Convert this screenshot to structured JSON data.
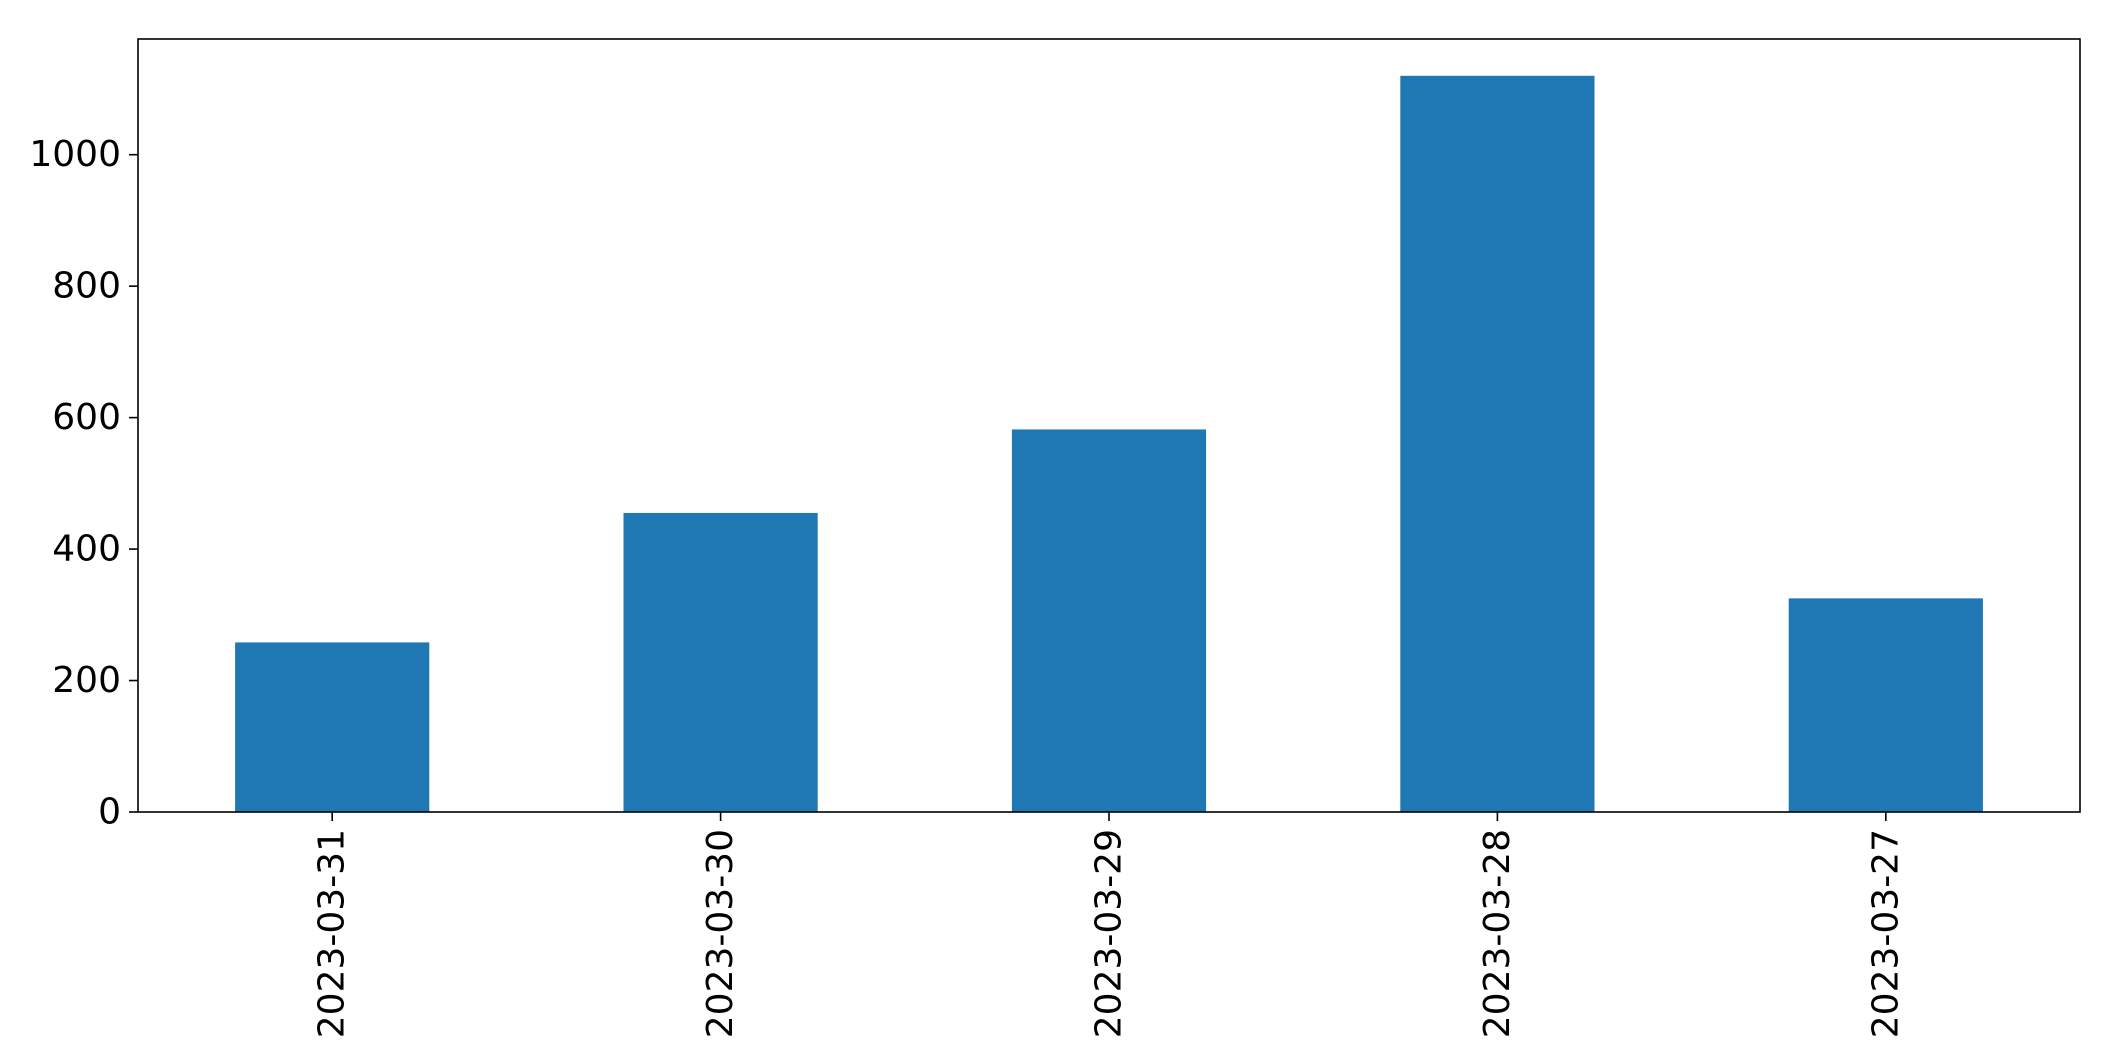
{
  "chart_data": {
    "type": "bar",
    "title": "",
    "xlabel": "",
    "ylabel": "",
    "categories": [
      "2023-03-31",
      "2023-03-30",
      "2023-03-29",
      "2023-03-28",
      "2023-03-27"
    ],
    "values": [
      258,
      455,
      582,
      1120,
      325
    ],
    "ylim": [
      0,
      1176
    ],
    "yticks": [
      0,
      200,
      400,
      600,
      800,
      1000
    ],
    "ytick_labels": [
      "0",
      "200",
      "400",
      "600",
      "800",
      "1000"
    ],
    "x_tick_rotation": "vertical",
    "grid": false,
    "legend": "none",
    "colors": {
      "bar": "#1f77b4"
    }
  }
}
